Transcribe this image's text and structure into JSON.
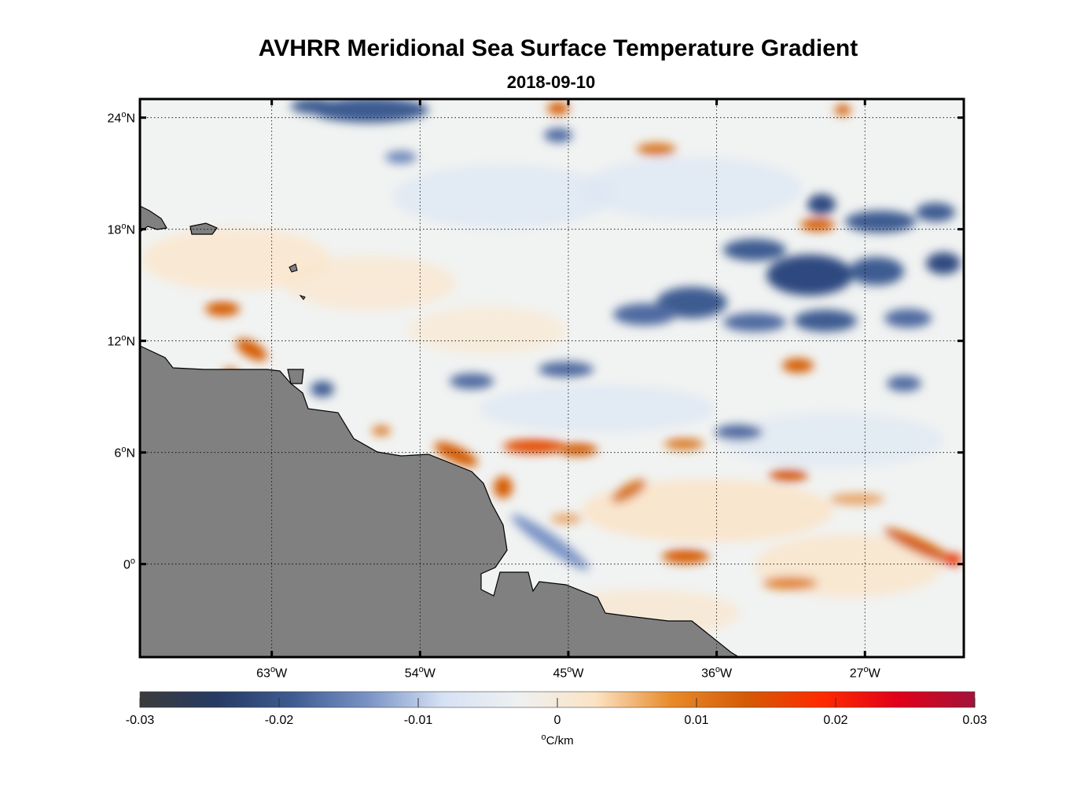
{
  "title": "AVHRR Meridional Sea Surface Temperature Gradient",
  "date": "2018-09-10",
  "map": {
    "lon_range": [
      -71,
      -21
    ],
    "lat_range": [
      -5,
      25
    ],
    "land_color": "#808080",
    "lat_ticks": [
      {
        "value": 24,
        "deg": "24",
        "sym": "o",
        "hem": "N"
      },
      {
        "value": 18,
        "deg": "18",
        "sym": "o",
        "hem": "N"
      },
      {
        "value": 12,
        "deg": "12",
        "sym": "o",
        "hem": "N"
      },
      {
        "value": 6,
        "deg": "6",
        "sym": "o",
        "hem": "N"
      },
      {
        "value": 0,
        "deg": "0",
        "sym": "o",
        "hem": ""
      }
    ],
    "lon_ticks": [
      {
        "value": -63,
        "deg": "63",
        "sym": "o",
        "hem": "W"
      },
      {
        "value": -54,
        "deg": "54",
        "sym": "o",
        "hem": "W"
      },
      {
        "value": -45,
        "deg": "45",
        "sym": "o",
        "hem": "W"
      },
      {
        "value": -36,
        "deg": "36",
        "sym": "o",
        "hem": "W"
      },
      {
        "value": -27,
        "deg": "27",
        "sym": "o",
        "hem": "W"
      }
    ]
  },
  "colorbar": {
    "min": -0.03,
    "max": 0.03,
    "tick_labels": [
      "-0.03",
      "-0.02",
      "-0.01",
      "0",
      "0.01",
      "0.02",
      "0.03"
    ],
    "unit_symbol": "o",
    "unit_text": "C/km",
    "colors": [
      "#3b3b3b",
      "#263a63",
      "#3e5b91",
      "#7a93c5",
      "#d6e2f4",
      "#eef1f1",
      "#fbe3c4",
      "#e88a2a",
      "#d45a05",
      "#ff2a00",
      "#e0001a",
      "#a3133a"
    ]
  }
}
